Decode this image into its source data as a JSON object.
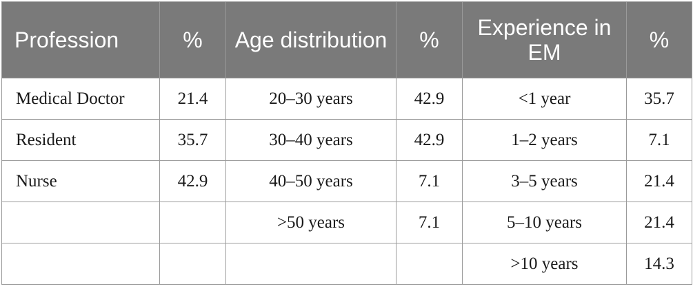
{
  "headers": [
    "Profession",
    "%",
    "Age distribution",
    "%",
    "Experience in EM",
    "%"
  ],
  "rows": [
    [
      "Medical Doctor",
      "21.4",
      "20–30 years",
      "42.9",
      "<1 year",
      "35.7"
    ],
    [
      "Resident",
      "35.7",
      "30–40 years",
      "42.9",
      "1–2 years",
      "7.1"
    ],
    [
      "Nurse",
      "42.9",
      "40–50 years",
      "7.1",
      "3–5 years",
      "21.4"
    ],
    [
      "",
      "",
      ">50 years",
      "7.1",
      "5–10 years",
      "21.4"
    ],
    [
      "",
      "",
      "",
      "",
      ">10 years",
      "14.3"
    ]
  ]
}
